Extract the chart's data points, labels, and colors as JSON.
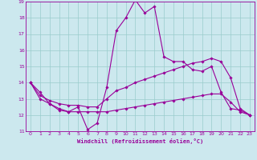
{
  "xlabel": "Windchill (Refroidissement éolien,°C)",
  "bg_color": "#cce8ee",
  "grid_color": "#99cccc",
  "line_color": "#990099",
  "xlim": [
    -0.5,
    23.5
  ],
  "ylim": [
    11,
    19
  ],
  "xticks": [
    0,
    1,
    2,
    3,
    4,
    5,
    6,
    7,
    8,
    9,
    10,
    11,
    12,
    13,
    14,
    15,
    16,
    17,
    18,
    19,
    20,
    21,
    22,
    23
  ],
  "yticks": [
    11,
    12,
    13,
    14,
    15,
    16,
    17,
    18,
    19
  ],
  "line1_x": [
    0,
    1,
    2,
    3,
    4,
    5,
    6,
    7,
    8,
    9,
    10,
    11,
    12,
    13,
    14,
    15,
    16,
    17,
    18,
    19,
    20,
    21,
    22,
    23
  ],
  "line1_y": [
    14.0,
    13.4,
    12.7,
    12.4,
    12.2,
    12.5,
    11.1,
    11.5,
    13.7,
    17.2,
    18.0,
    19.1,
    18.3,
    18.7,
    15.6,
    15.3,
    15.3,
    14.8,
    14.7,
    15.0,
    13.4,
    12.4,
    12.3,
    12.0
  ],
  "line2_x": [
    0,
    1,
    2,
    3,
    4,
    5,
    6,
    7,
    8,
    9,
    10,
    11,
    12,
    13,
    14,
    15,
    16,
    17,
    18,
    19,
    20,
    21,
    22,
    23
  ],
  "line2_y": [
    14.0,
    13.2,
    12.9,
    12.7,
    12.6,
    12.6,
    12.5,
    12.5,
    13.0,
    13.5,
    13.7,
    14.0,
    14.2,
    14.4,
    14.6,
    14.8,
    15.0,
    15.2,
    15.3,
    15.5,
    15.3,
    14.3,
    12.4,
    12.0
  ],
  "line3_x": [
    0,
    1,
    2,
    3,
    4,
    5,
    6,
    7,
    8,
    9,
    10,
    11,
    12,
    13,
    14,
    15,
    16,
    17,
    18,
    19,
    20,
    21,
    22,
    23
  ],
  "line3_y": [
    14.0,
    13.0,
    12.7,
    12.3,
    12.2,
    12.2,
    12.2,
    12.2,
    12.2,
    12.3,
    12.4,
    12.5,
    12.6,
    12.7,
    12.8,
    12.9,
    13.0,
    13.1,
    13.2,
    13.3,
    13.3,
    12.8,
    12.2,
    12.0
  ]
}
